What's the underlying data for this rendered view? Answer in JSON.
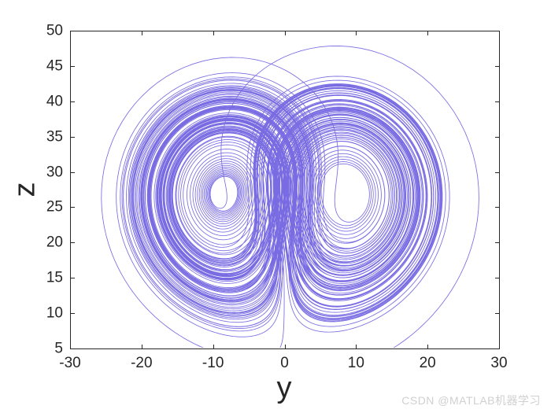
{
  "figure": {
    "background": "#ffffff",
    "watermark": "CSDN @MATLAB机器学习"
  },
  "chart_data": {
    "type": "line",
    "title": "",
    "xlabel": "y",
    "ylabel": "z",
    "xlim": [
      -30,
      30
    ],
    "ylim": [
      5,
      50
    ],
    "x_ticks": [
      -30,
      -20,
      -10,
      0,
      10,
      20,
      30
    ],
    "y_ticks": [
      5,
      10,
      15,
      20,
      25,
      30,
      35,
      40,
      45,
      50
    ],
    "grid": false,
    "legend": null,
    "box": true,
    "tick_dir": "in",
    "axis_color": "#262626",
    "line_color": "#6e5fe0",
    "series_generator": {
      "system": "lorenz-attractor",
      "equations": "dx/dt = sigma*(y-x); dy/dt = x*(rho-z)-y; dz/dt = x*y-beta*z",
      "params": {
        "sigma": 10,
        "rho": 28,
        "beta": 2.6666667
      },
      "initial": [
        1,
        1,
        1
      ],
      "dt": 0.004,
      "steps": 35000,
      "projection": [
        "y",
        "z"
      ]
    }
  }
}
